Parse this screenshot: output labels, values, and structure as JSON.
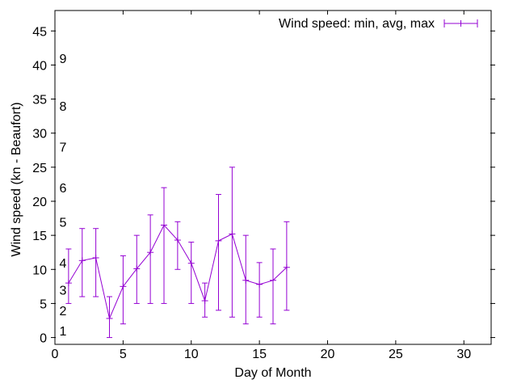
{
  "chart_data": {
    "type": "line",
    "subtype": "errorbars (min/avg/max) with connecting line",
    "title": "",
    "legend_label": "Wind speed: min, avg, max",
    "legend_position": "top-right inside plot",
    "xlabel": "Day of Month",
    "ylabel": "Wind speed (kn - Beaufort)",
    "xlim": [
      0,
      32
    ],
    "ylim": [
      -1,
      48
    ],
    "x_ticks": [
      0,
      5,
      10,
      15,
      20,
      25,
      30
    ],
    "y_ticks": [
      0,
      5,
      10,
      15,
      20,
      25,
      30,
      35,
      40,
      45
    ],
    "grid": false,
    "beaufort_scale_labels": [
      {
        "beaufort": "1",
        "kn": 1
      },
      {
        "beaufort": "2",
        "kn": 4
      },
      {
        "beaufort": "3",
        "kn": 7
      },
      {
        "beaufort": "4",
        "kn": 11
      },
      {
        "beaufort": "5",
        "kn": 17
      },
      {
        "beaufort": "6",
        "kn": 22
      },
      {
        "beaufort": "7",
        "kn": 28
      },
      {
        "beaufort": "8",
        "kn": 34
      },
      {
        "beaufort": "9",
        "kn": 41
      }
    ],
    "series": [
      {
        "name": "Wind speed: min, avg, max",
        "color": "#9400D3",
        "days": [
          1,
          2,
          3,
          4,
          5,
          6,
          7,
          8,
          9,
          10,
          11,
          12,
          13,
          14,
          15,
          16,
          17
        ],
        "min": [
          5,
          6,
          6,
          0,
          2,
          5,
          5,
          5,
          10,
          5,
          3,
          4,
          3,
          2,
          3,
          2,
          4
        ],
        "avg": [
          8.0,
          11.3,
          11.7,
          2.8,
          7.5,
          10.1,
          12.5,
          16.5,
          14.3,
          10.9,
          5.4,
          14.2,
          15.2,
          8.4,
          7.8,
          8.4,
          10.3
        ],
        "max": [
          13,
          16,
          16,
          6,
          12,
          15,
          18,
          22,
          17,
          14,
          8,
          21,
          25,
          15,
          11,
          13,
          17
        ]
      }
    ]
  },
  "colors": {
    "series": "#9400D3",
    "axis": "#000000",
    "text": "#000000",
    "background": "#ffffff"
  }
}
